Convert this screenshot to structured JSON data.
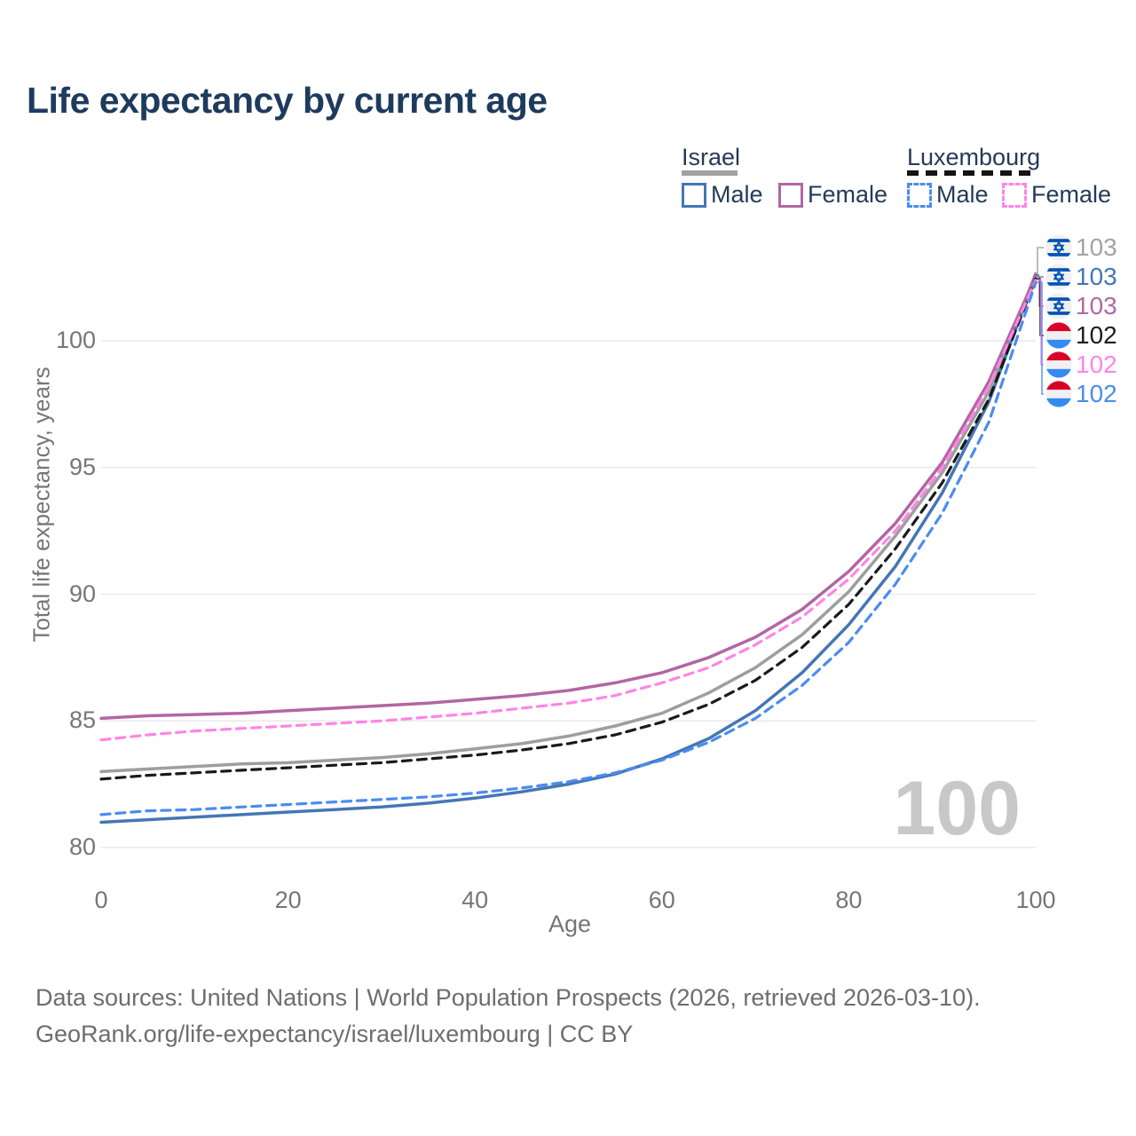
{
  "title": "Life expectancy by current age",
  "legend": {
    "groups": [
      {
        "country": "Israel",
        "underline_style": "solid",
        "underline_color": "#a1a1a1",
        "items": [
          {
            "label": "Male",
            "color": "#4576b5",
            "dashed": false
          },
          {
            "label": "Female",
            "color": "#b266a3",
            "dashed": false
          }
        ]
      },
      {
        "country": "Luxembourg",
        "underline_style": "dashed",
        "underline_color": "#141414",
        "items": [
          {
            "label": "Male",
            "color": "#4b8cf0",
            "dashed": true
          },
          {
            "label": "Female",
            "color": "#ff85e6",
            "dashed": true
          }
        ]
      }
    ]
  },
  "axes": {
    "y_title": "Total life expectancy, years",
    "x_title": "Age",
    "y_ticks": [
      80,
      85,
      90,
      95,
      100
    ],
    "x_ticks": [
      0,
      20,
      40,
      60,
      80,
      100
    ]
  },
  "watermark": "100",
  "chart_data": {
    "type": "line",
    "xlabel": "Age",
    "ylabel": "Total life expectancy, years",
    "xlim": [
      0,
      100
    ],
    "ylim": [
      80,
      103
    ],
    "grid": "horizontal",
    "legend_position": "top-right",
    "ages": [
      0,
      5,
      10,
      15,
      20,
      25,
      30,
      35,
      40,
      45,
      50,
      55,
      60,
      65,
      70,
      75,
      80,
      85,
      90,
      95,
      100
    ],
    "series": [
      {
        "name": "Israel Total",
        "country": "Israel",
        "sex": "Total",
        "flag": "israel",
        "color": "#9e9e9e",
        "dashed": false,
        "end_label": "103",
        "end_label_color": "#a3a3a3",
        "values": [
          83.0,
          83.1,
          83.2,
          83.3,
          83.35,
          83.45,
          83.55,
          83.7,
          83.9,
          84.1,
          84.4,
          84.8,
          85.3,
          86.1,
          87.1,
          88.4,
          90.1,
          92.3,
          94.8,
          98.0,
          102.65
        ]
      },
      {
        "name": "Israel Male",
        "country": "Israel",
        "sex": "Male",
        "flag": "israel",
        "color": "#4576b5",
        "dashed": false,
        "end_label": "103",
        "end_label_color": "#4576b5",
        "values": [
          81.0,
          81.1,
          81.2,
          81.3,
          81.4,
          81.5,
          81.6,
          81.75,
          81.95,
          82.2,
          82.5,
          82.9,
          83.5,
          84.3,
          85.4,
          86.9,
          88.8,
          91.1,
          94.0,
          97.6,
          102.6
        ]
      },
      {
        "name": "Israel Female",
        "country": "Israel",
        "sex": "Female",
        "flag": "israel",
        "color": "#b266a3",
        "dashed": false,
        "end_label": "103",
        "end_label_color": "#b266a3",
        "values": [
          85.1,
          85.2,
          85.25,
          85.3,
          85.4,
          85.5,
          85.6,
          85.7,
          85.85,
          86.0,
          86.2,
          86.5,
          86.9,
          87.5,
          88.3,
          89.4,
          90.9,
          92.8,
          95.2,
          98.4,
          102.55
        ]
      },
      {
        "name": "Luxembourg Total",
        "country": "Luxembourg",
        "sex": "Total",
        "flag": "luxembourg",
        "color": "#1a1a1a",
        "dashed": true,
        "end_label": "102",
        "end_label_color": "#1c1c1c",
        "values": [
          82.7,
          82.85,
          82.95,
          83.05,
          83.15,
          83.25,
          83.35,
          83.5,
          83.65,
          83.85,
          84.1,
          84.45,
          84.95,
          85.65,
          86.6,
          87.9,
          89.6,
          91.8,
          94.4,
          97.7,
          102.45
        ]
      },
      {
        "name": "Luxembourg Female",
        "country": "Luxembourg",
        "sex": "Female",
        "flag": "luxembourg",
        "color": "#ff85e6",
        "dashed": true,
        "end_label": "102",
        "end_label_color": "#ff85e6",
        "values": [
          84.25,
          84.45,
          84.6,
          84.7,
          84.8,
          84.9,
          85.0,
          85.15,
          85.3,
          85.5,
          85.7,
          86.0,
          86.5,
          87.1,
          88.0,
          89.1,
          90.6,
          92.5,
          95.0,
          98.2,
          102.4
        ]
      },
      {
        "name": "Luxembourg Male",
        "country": "Luxembourg",
        "sex": "Male",
        "flag": "luxembourg",
        "color": "#4b8cf0",
        "dashed": true,
        "end_label": "102",
        "end_label_color": "#4b8cf0",
        "values": [
          81.3,
          81.45,
          81.5,
          81.6,
          81.7,
          81.8,
          81.9,
          82.0,
          82.15,
          82.35,
          82.6,
          82.95,
          83.45,
          84.15,
          85.1,
          86.4,
          88.1,
          90.4,
          93.2,
          96.8,
          102.3
        ]
      }
    ]
  },
  "footer": {
    "line1": "Data sources: United Nations | World Population Prospects (2026, retrieved 2026-03-10).",
    "line2": "GeoRank.org/life-expectancy/israel/luxembourg | CC BY"
  }
}
